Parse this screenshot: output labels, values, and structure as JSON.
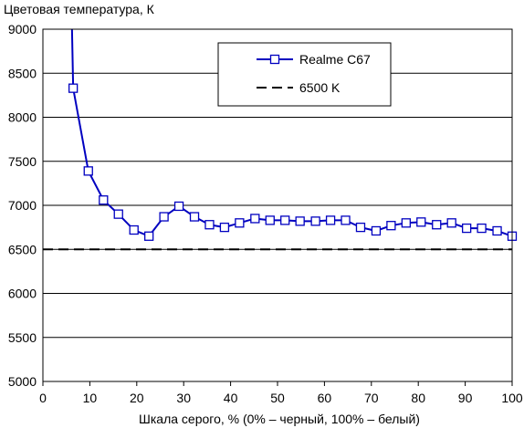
{
  "chart_data": {
    "type": "line",
    "title": "",
    "ylabel": "Цветовая температура, К",
    "xlabel": "Шкала серого, % (0% – черный, 100% – белый)",
    "xlim": [
      0,
      100
    ],
    "ylim": [
      5000,
      9000
    ],
    "xticks": [
      "0",
      "10",
      "20",
      "30",
      "40",
      "50",
      "60",
      "70",
      "80",
      "90",
      "100"
    ],
    "yticks": [
      "5000",
      "5500",
      "6000",
      "6500",
      "7000",
      "7500",
      "8000",
      "8500",
      "9000"
    ],
    "grid": "horizontal",
    "legend_position": "top-right",
    "series": [
      {
        "name": "Realme C67",
        "color": "#0000c0",
        "marker": "open-square",
        "x": [
          6.45,
          9.68,
          12.9,
          16.1,
          19.4,
          22.6,
          25.8,
          29.0,
          32.3,
          35.5,
          38.7,
          41.9,
          45.2,
          48.4,
          51.6,
          54.8,
          58.1,
          61.3,
          64.5,
          67.7,
          71.0,
          74.2,
          77.4,
          80.6,
          83.9,
          87.1,
          90.3,
          93.5,
          96.8,
          100
        ],
        "y": [
          8330,
          7390,
          7060,
          6900,
          6720,
          6650,
          6870,
          6990,
          6870,
          6780,
          6750,
          6800,
          6850,
          6830,
          6830,
          6820,
          6820,
          6830,
          6830,
          6750,
          6710,
          6770,
          6800,
          6810,
          6780,
          6800,
          6740,
          6740,
          6710,
          6650
        ],
        "lead_in": {
          "x": [
            6.2,
            6.45
          ],
          "y": [
            9000,
            8330
          ]
        }
      },
      {
        "name": "6500 K",
        "color": "#000000",
        "style": "dashed",
        "x": [
          0,
          100
        ],
        "y": [
          6500,
          6500
        ]
      }
    ]
  }
}
